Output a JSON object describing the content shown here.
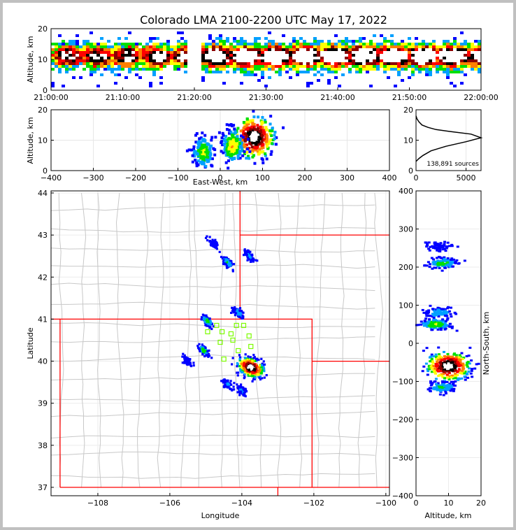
{
  "title": "Colorado LMA 2100-2200 UTC May 17, 2022",
  "time_panel": {
    "ylabel": "Altitude, km",
    "yticks": [
      "0",
      "10",
      "20"
    ],
    "xticks": [
      "21:00:00",
      "21:10:00",
      "21:20:00",
      "21:30:00",
      "21:40:00",
      "21:50:00",
      "22:00:00"
    ]
  },
  "ew_panel": {
    "ylabel": "Altitude, km",
    "xlabel": "East-West, km",
    "yticks": [
      "0",
      "10",
      "20"
    ],
    "xticks": [
      "−400",
      "−300",
      "−200",
      "−100",
      "0",
      "100",
      "200",
      "300",
      "400"
    ]
  },
  "hist_panel": {
    "yticks": [
      "0",
      "10",
      "20"
    ],
    "xticks": [
      "0",
      "5000"
    ],
    "sources_label": "138,891 sources"
  },
  "map_panel": {
    "ylabel": "Latitude",
    "xlabel": "Longitude",
    "yticks": [
      "37",
      "38",
      "39",
      "40",
      "41",
      "42",
      "43",
      "44"
    ],
    "xticks": [
      "−108",
      "−106",
      "−104",
      "−102",
      "−100"
    ]
  },
  "ns_panel": {
    "ylabel": "North-South, km",
    "xlabel": "Altitude, km",
    "yticks": [
      "−400",
      "−300",
      "−200",
      "−100",
      "0",
      "100",
      "200",
      "300",
      "400"
    ],
    "xticks": [
      "0",
      "10",
      "20"
    ]
  },
  "colors": {
    "border": "#c8c8c8",
    "state_line": "#ff0000",
    "station": "#7cfc00",
    "density_scale": [
      "#5000a0",
      "#0000ff",
      "#00a0ff",
      "#00e000",
      "#ffff00",
      "#ff8000",
      "#ff0000",
      "#8b0000",
      "#000000",
      "#ffffff"
    ]
  },
  "chart_data": [
    {
      "type": "heatmap",
      "description_key": "time-height",
      "x_range": [
        "21:00:00",
        "22:00:00"
      ],
      "y_range": [
        0,
        20
      ],
      "gap": [
        "21:19:00",
        "21:21:00"
      ],
      "core_altitude_km": 11
    },
    {
      "type": "heatmap",
      "description_key": "east-west vs altitude",
      "x_range": [
        -400,
        400
      ],
      "y_range": [
        0,
        20
      ],
      "cells": [
        {
          "x": 80,
          "y": 11,
          "weight": 1.0
        },
        {
          "x": 30,
          "y": 8,
          "weight": 0.45
        },
        {
          "x": -40,
          "y": 6,
          "weight": 0.35
        }
      ]
    },
    {
      "type": "line",
      "description_key": "altitude histogram",
      "x_range": [
        0,
        6500
      ],
      "y_range": [
        0,
        20
      ],
      "x": [
        0,
        300,
        700,
        1500,
        3000,
        5000,
        6500,
        5500,
        3500,
        2000,
        1200,
        600,
        300,
        100,
        0
      ],
      "y": [
        3,
        4,
        5,
        6.5,
        8,
        9.5,
        10.8,
        12,
        12.8,
        13.5,
        14.2,
        15,
        16,
        17,
        18
      ]
    },
    {
      "type": "scatter",
      "description_key": "plan view",
      "x_range": [
        -109.3,
        -99.9
      ],
      "y_range": [
        36.8,
        44.05
      ],
      "clusters": [
        {
          "lon": -103.75,
          "lat": 39.85,
          "weight": 1.0
        },
        {
          "lon": -104.95,
          "lat": 40.95,
          "weight": 0.3
        },
        {
          "lon": -105.05,
          "lat": 40.25,
          "weight": 0.3
        },
        {
          "lon": -104.4,
          "lat": 42.35,
          "weight": 0.25
        },
        {
          "lon": -103.8,
          "lat": 42.5,
          "weight": 0.15
        },
        {
          "lon": -104.1,
          "lat": 41.15,
          "weight": 0.2
        },
        {
          "lon": -104.4,
          "lat": 39.45,
          "weight": 0.15
        },
        {
          "lon": -104.0,
          "lat": 39.3,
          "weight": 0.15
        },
        {
          "lon": -104.8,
          "lat": 42.8,
          "weight": 0.1
        },
        {
          "lon": -105.5,
          "lat": 40.0,
          "weight": 0.1
        }
      ],
      "stations": [
        {
          "lon": -104.7,
          "lat": 40.85
        },
        {
          "lon": -104.15,
          "lat": 40.85
        },
        {
          "lon": -103.95,
          "lat": 40.85
        },
        {
          "lon": -104.95,
          "lat": 40.7
        },
        {
          "lon": -104.55,
          "lat": 40.7
        },
        {
          "lon": -104.3,
          "lat": 40.65
        },
        {
          "lon": -103.8,
          "lat": 40.6
        },
        {
          "lon": -104.6,
          "lat": 40.45
        },
        {
          "lon": -104.25,
          "lat": 40.5
        },
        {
          "lon": -103.75,
          "lat": 40.35
        },
        {
          "lon": -104.1,
          "lat": 40.25
        },
        {
          "lon": -104.5,
          "lat": 40.05
        }
      ]
    },
    {
      "type": "heatmap",
      "description_key": "altitude vs north-south",
      "x_range": [
        0,
        20
      ],
      "y_range": [
        -400,
        400
      ],
      "cells": [
        {
          "x": 10,
          "y": -60,
          "weight": 1.0
        },
        {
          "x": 8,
          "y": -115,
          "weight": 0.25
        },
        {
          "x": 6,
          "y": 50,
          "weight": 0.35
        },
        {
          "x": 7,
          "y": 80,
          "weight": 0.2
        },
        {
          "x": 8,
          "y": 210,
          "weight": 0.3
        },
        {
          "x": 7,
          "y": 255,
          "weight": 0.1
        }
      ]
    }
  ]
}
